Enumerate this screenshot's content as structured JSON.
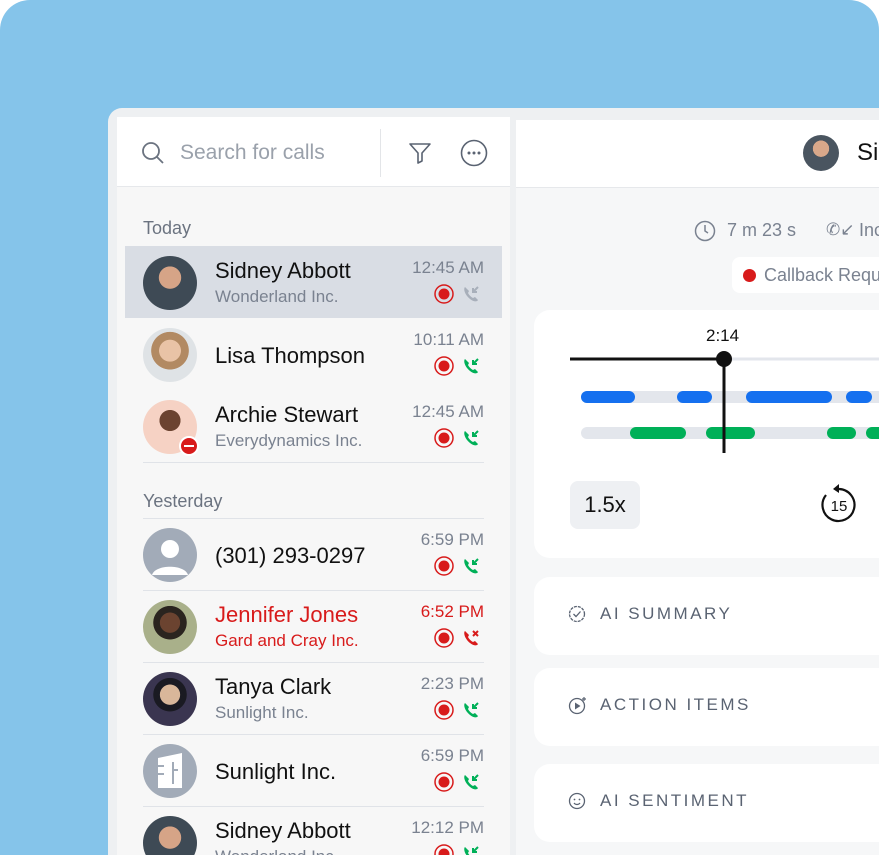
{
  "search": {
    "placeholder": "Search for calls"
  },
  "sections": {
    "today": "Today",
    "yesterday": "Yesterday"
  },
  "calls": [
    {
      "name": "Sidney Abbott",
      "company": "Wonderland Inc.",
      "time": "12:45 AM",
      "status": "selected",
      "call_icon": "incoming-gray"
    },
    {
      "name": "Lisa Thompson",
      "company": "",
      "time": "10:11 AM",
      "call_icon": "incoming"
    },
    {
      "name": "Archie Stewart",
      "company": "Everydynamics Inc.",
      "time": "12:45 AM",
      "call_icon": "incoming",
      "presence": "do-not-disturb"
    },
    {
      "name": "(301) 293-0297",
      "company": "",
      "time": "6:59 PM",
      "call_icon": "incoming"
    },
    {
      "name": "Jennifer Jones",
      "company": "Gard and Cray Inc.",
      "time": "6:52 PM",
      "call_icon": "missed",
      "missed": true
    },
    {
      "name": "Tanya Clark",
      "company": "Sunlight Inc.",
      "time": "2:23 PM",
      "call_icon": "incoming"
    },
    {
      "name": "Sunlight Inc.",
      "company": "",
      "time": "6:59 PM",
      "call_icon": "incoming"
    },
    {
      "name": "Sidney Abbott",
      "company": "Wonderland Inc.",
      "time": "12:12 PM",
      "call_icon": "incoming"
    }
  ],
  "detail": {
    "name": "Si",
    "duration": "7 m 23 s",
    "direction": "Inc",
    "tag": "Callback Requ",
    "playhead": "2:14",
    "speed": "1.5x",
    "skip_back": "15",
    "cards": [
      "AI SUMMARY",
      "ACTION ITEMS",
      "AI SENTIMENT"
    ]
  },
  "colors": {
    "background": "#85c4ea",
    "speaker_a": "#1570ef",
    "speaker_b": "#00b058",
    "recording": "#d81b1b",
    "missed": "#d81b1b"
  }
}
